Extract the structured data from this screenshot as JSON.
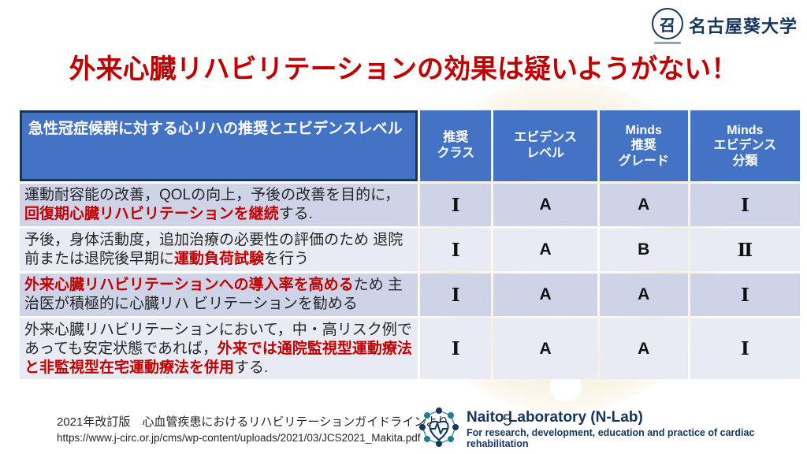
{
  "colors": {
    "header_blue": "#4472C4",
    "band_dark": "#CED3E8",
    "band_light": "#E9EBF4",
    "title_red": "#C00000",
    "navy": "#17365D",
    "cream": "#F5EED8"
  },
  "page": {
    "slide_number": "5"
  },
  "university": {
    "name": "名古屋葵大学",
    "emblem_glyph": "召"
  },
  "title": {
    "text": "外来心臓リハビリテーションの効果は疑いようがない！"
  },
  "table": {
    "header": {
      "topic": "急性冠症候群に対する心リハの推奨とエビデンスレベル",
      "columns": [
        [
          "推奨",
          "クラス"
        ],
        [
          "エビデンス",
          "レベル"
        ],
        [
          "Minds",
          "推奨",
          "グレード"
        ],
        [
          "Minds",
          "エビデンス",
          "分類"
        ]
      ]
    },
    "rows": [
      {
        "segments": [
          {
            "text": "運動耐容能の改善，QOLの向上，予後の改善を目的に，",
            "red": false
          },
          {
            "text": "回復期心臓リハビリテーションを継続",
            "red": true
          },
          {
            "text": "する.",
            "red": false
          }
        ],
        "values": [
          "Ⅰ",
          "A",
          "A",
          "Ⅰ"
        ],
        "tall": false
      },
      {
        "segments": [
          {
            "text": "予後，身体活動度，追加治療の必要性の評価のため 退院前または退院後早期に",
            "red": false
          },
          {
            "text": "運動負荷試験",
            "red": true
          },
          {
            "text": "を行う",
            "red": false
          }
        ],
        "values": [
          "Ⅰ",
          "A",
          "B",
          "Ⅱ"
        ],
        "tall": false
      },
      {
        "segments": [
          {
            "text": "外来心臓リハビリテーションへの導入率を高める",
            "red": true
          },
          {
            "text": "ため 主治医が積極的に心臓リハ ビリテーションを勧める",
            "red": false
          }
        ],
        "values": [
          "Ⅰ",
          "A",
          "A",
          "Ⅰ"
        ],
        "tall": false
      },
      {
        "segments": [
          {
            "text": "外来心臓リハビリテーションにおいて，中・高リスク例であっても安定状態であれば，",
            "red": false
          },
          {
            "text": "外来では通院監視型運動療法と非監視型在宅運動療法を併用",
            "red": true
          },
          {
            "text": "する.",
            "red": false
          }
        ],
        "values": [
          "Ⅰ",
          "A",
          "A",
          "Ⅰ"
        ],
        "tall": true
      }
    ]
  },
  "footer": {
    "citation_line1": "2021年改訂版　心血管疾患におけるリハビリテーションガイドラインより",
    "citation_line2": "https://www.j-circ.or.jp/cms/wp-content/uploads/2021/03/JCS2021_Makita.pdf",
    "lab": {
      "name": "Naito Laboratory (N-Lab)",
      "tagline": "For research, development, education and practice of cardiac rehabilitation"
    }
  }
}
